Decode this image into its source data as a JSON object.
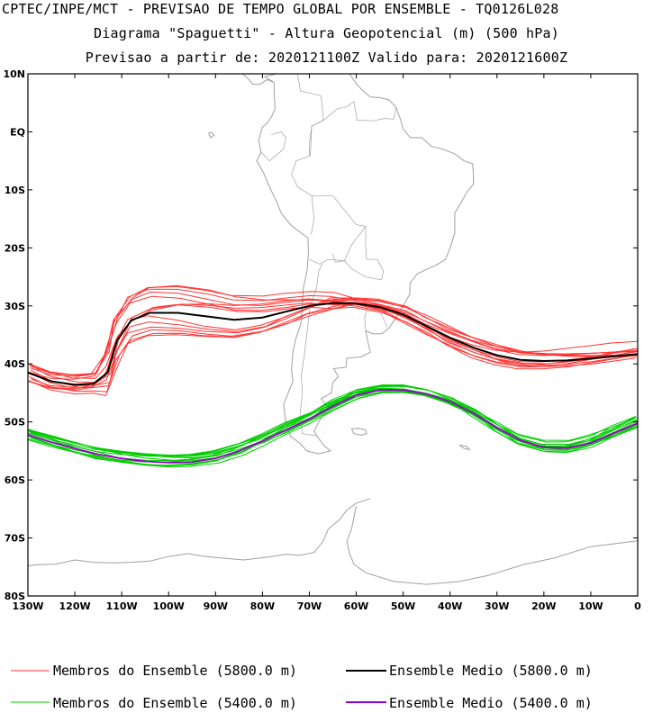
{
  "header": {
    "line1": "CPTEC/INPE/MCT - PREVISAO DE TEMPO GLOBAL POR ENSEMBLE - TQ0126L028",
    "line2": "Diagrama \"Spaguetti\" - Altura Geopotencial (m) (500 hPa)",
    "line3": "Previsao a partir de: 2020121100Z  Valido para: 2020121600Z"
  },
  "map": {
    "lon_range": [
      -130,
      0
    ],
    "lat_range": [
      -80,
      10
    ],
    "lat_ticks": [
      {
        "value": 10,
        "label": "10N"
      },
      {
        "value": 0,
        "label": "EQ"
      },
      {
        "value": -10,
        "label": "10S"
      },
      {
        "value": -20,
        "label": "20S"
      },
      {
        "value": -30,
        "label": "30S"
      },
      {
        "value": -40,
        "label": "40S"
      },
      {
        "value": -50,
        "label": "50S"
      },
      {
        "value": -60,
        "label": "60S"
      },
      {
        "value": -70,
        "label": "70S"
      },
      {
        "value": -80,
        "label": "80S"
      }
    ],
    "lon_ticks": [
      {
        "value": -130,
        "label": "130W"
      },
      {
        "value": -120,
        "label": "120W"
      },
      {
        "value": -110,
        "label": "110W"
      },
      {
        "value": -100,
        "label": "100W"
      },
      {
        "value": -90,
        "label": "90W"
      },
      {
        "value": -80,
        "label": "80W"
      },
      {
        "value": -70,
        "label": "70W"
      },
      {
        "value": -60,
        "label": "60W"
      },
      {
        "value": -50,
        "label": "50W"
      },
      {
        "value": -40,
        "label": "40W"
      },
      {
        "value": -30,
        "label": "30W"
      },
      {
        "value": -20,
        "label": "20W"
      },
      {
        "value": -10,
        "label": "10W"
      },
      {
        "value": 0,
        "label": "0"
      }
    ],
    "coast_color": "#a0a0a0"
  },
  "chart_data": {
    "type": "line",
    "series": [
      {
        "name": "Ensemble Medio (5800.0 m)",
        "color": "#000000",
        "points": [
          [
            -130,
            -41.5
          ],
          [
            -125,
            -43
          ],
          [
            -120,
            -43.6
          ],
          [
            -116,
            -43.4
          ],
          [
            -113,
            -41.5
          ],
          [
            -111,
            -36
          ],
          [
            -108,
            -32.5
          ],
          [
            -104,
            -31.2
          ],
          [
            -98,
            -31.2
          ],
          [
            -92,
            -31.8
          ],
          [
            -86,
            -32.4
          ],
          [
            -80,
            -32
          ],
          [
            -75,
            -31
          ],
          [
            -70,
            -30
          ],
          [
            -65,
            -29.5
          ],
          [
            -60,
            -29.6
          ],
          [
            -55,
            -30.2
          ],
          [
            -50,
            -31.5
          ],
          [
            -45,
            -33.5
          ],
          [
            -40,
            -35.5
          ],
          [
            -35,
            -37.2
          ],
          [
            -30,
            -38.5
          ],
          [
            -25,
            -39.3
          ],
          [
            -20,
            -39.5
          ],
          [
            -15,
            -39.4
          ],
          [
            -10,
            -39.1
          ],
          [
            -5,
            -38.7
          ],
          [
            0,
            -38.3
          ]
        ]
      },
      {
        "name": "Ensemble Medio (5400.0 m)",
        "color": "#9900cc",
        "points": [
          [
            -130,
            -52.2
          ],
          [
            -125,
            -53.5
          ],
          [
            -120,
            -54.6
          ],
          [
            -115,
            -55.6
          ],
          [
            -110,
            -56.3
          ],
          [
            -105,
            -56.8
          ],
          [
            -100,
            -57
          ],
          [
            -95,
            -56.9
          ],
          [
            -90,
            -56.3
          ],
          [
            -85,
            -55
          ],
          [
            -80,
            -53.3
          ],
          [
            -75,
            -51.4
          ],
          [
            -70,
            -49.5
          ],
          [
            -65,
            -47.3
          ],
          [
            -60,
            -45.4
          ],
          [
            -55,
            -44.5
          ],
          [
            -50,
            -44.5
          ],
          [
            -45,
            -45.2
          ],
          [
            -40,
            -46.5
          ],
          [
            -35,
            -48.5
          ],
          [
            -30,
            -51
          ],
          [
            -25,
            -53.2
          ],
          [
            -20,
            -54.4
          ],
          [
            -15,
            -54.5
          ],
          [
            -10,
            -53.6
          ],
          [
            -5,
            -51.9
          ],
          [
            0,
            -50.2
          ]
        ]
      },
      {
        "name": "Membros do Ensemble (5800.0 m)",
        "color": "#ff3333",
        "points": [
          [
            -130,
            -41.2
          ],
          [
            -125,
            -42.7
          ],
          [
            -120,
            -43.3
          ],
          [
            -116,
            -43.1
          ],
          [
            -113,
            -41.2
          ],
          [
            -111,
            -35.7
          ],
          [
            -108,
            -32.2
          ],
          [
            -104,
            -30.9
          ],
          [
            -98,
            -30.9
          ],
          [
            -92,
            -31.5
          ],
          [
            -86,
            -32.1
          ],
          [
            -80,
            -31.7
          ],
          [
            -75,
            -30.7
          ],
          [
            -70,
            -29.7
          ],
          [
            -65,
            -29.2
          ],
          [
            -60,
            -29.3
          ],
          [
            -55,
            -29.9
          ],
          [
            -50,
            -31.2
          ],
          [
            -45,
            -33.2
          ],
          [
            -40,
            -35.2
          ],
          [
            -35,
            -36.9
          ],
          [
            -30,
            -38.2
          ],
          [
            -25,
            -39
          ],
          [
            -20,
            -39.2
          ],
          [
            -15,
            -39.1
          ],
          [
            -10,
            -38.8
          ],
          [
            -5,
            -38.4
          ],
          [
            0,
            -38
          ]
        ]
      },
      {
        "name": "Membros do Ensemble (5400.0 m)",
        "color": "#00cc00",
        "points": [
          [
            -130,
            -51.9
          ],
          [
            -125,
            -53.2
          ],
          [
            -120,
            -54.3
          ],
          [
            -115,
            -55.3
          ],
          [
            -110,
            -56
          ],
          [
            -105,
            -56.5
          ],
          [
            -100,
            -56.7
          ],
          [
            -95,
            -56.6
          ],
          [
            -90,
            -56
          ],
          [
            -85,
            -54.7
          ],
          [
            -80,
            -53
          ],
          [
            -75,
            -51.1
          ],
          [
            -70,
            -49.2
          ],
          [
            -65,
            -47
          ],
          [
            -60,
            -45.1
          ],
          [
            -55,
            -44.2
          ],
          [
            -50,
            -44.2
          ],
          [
            -45,
            -44.9
          ],
          [
            -40,
            -46.2
          ],
          [
            -35,
            -48.2
          ],
          [
            -30,
            -50.7
          ],
          [
            -25,
            -52.9
          ],
          [
            -20,
            -54.1
          ],
          [
            -15,
            -54.2
          ],
          [
            -10,
            -53.3
          ],
          [
            -5,
            -51.6
          ],
          [
            0,
            -49.9
          ]
        ]
      }
    ]
  },
  "legend": {
    "red_members": "Membros do Ensemble (5800.0 m)",
    "black_mean": "Ensemble Medio (5800.0 m)",
    "green_members": "Membros do Ensemble (5400.0 m)",
    "purple_mean": "Ensemble Medio (5400.0 m)",
    "colors": {
      "red": "#ff3333",
      "black": "#000000",
      "green": "#00cc00",
      "purple": "#9900cc"
    }
  }
}
